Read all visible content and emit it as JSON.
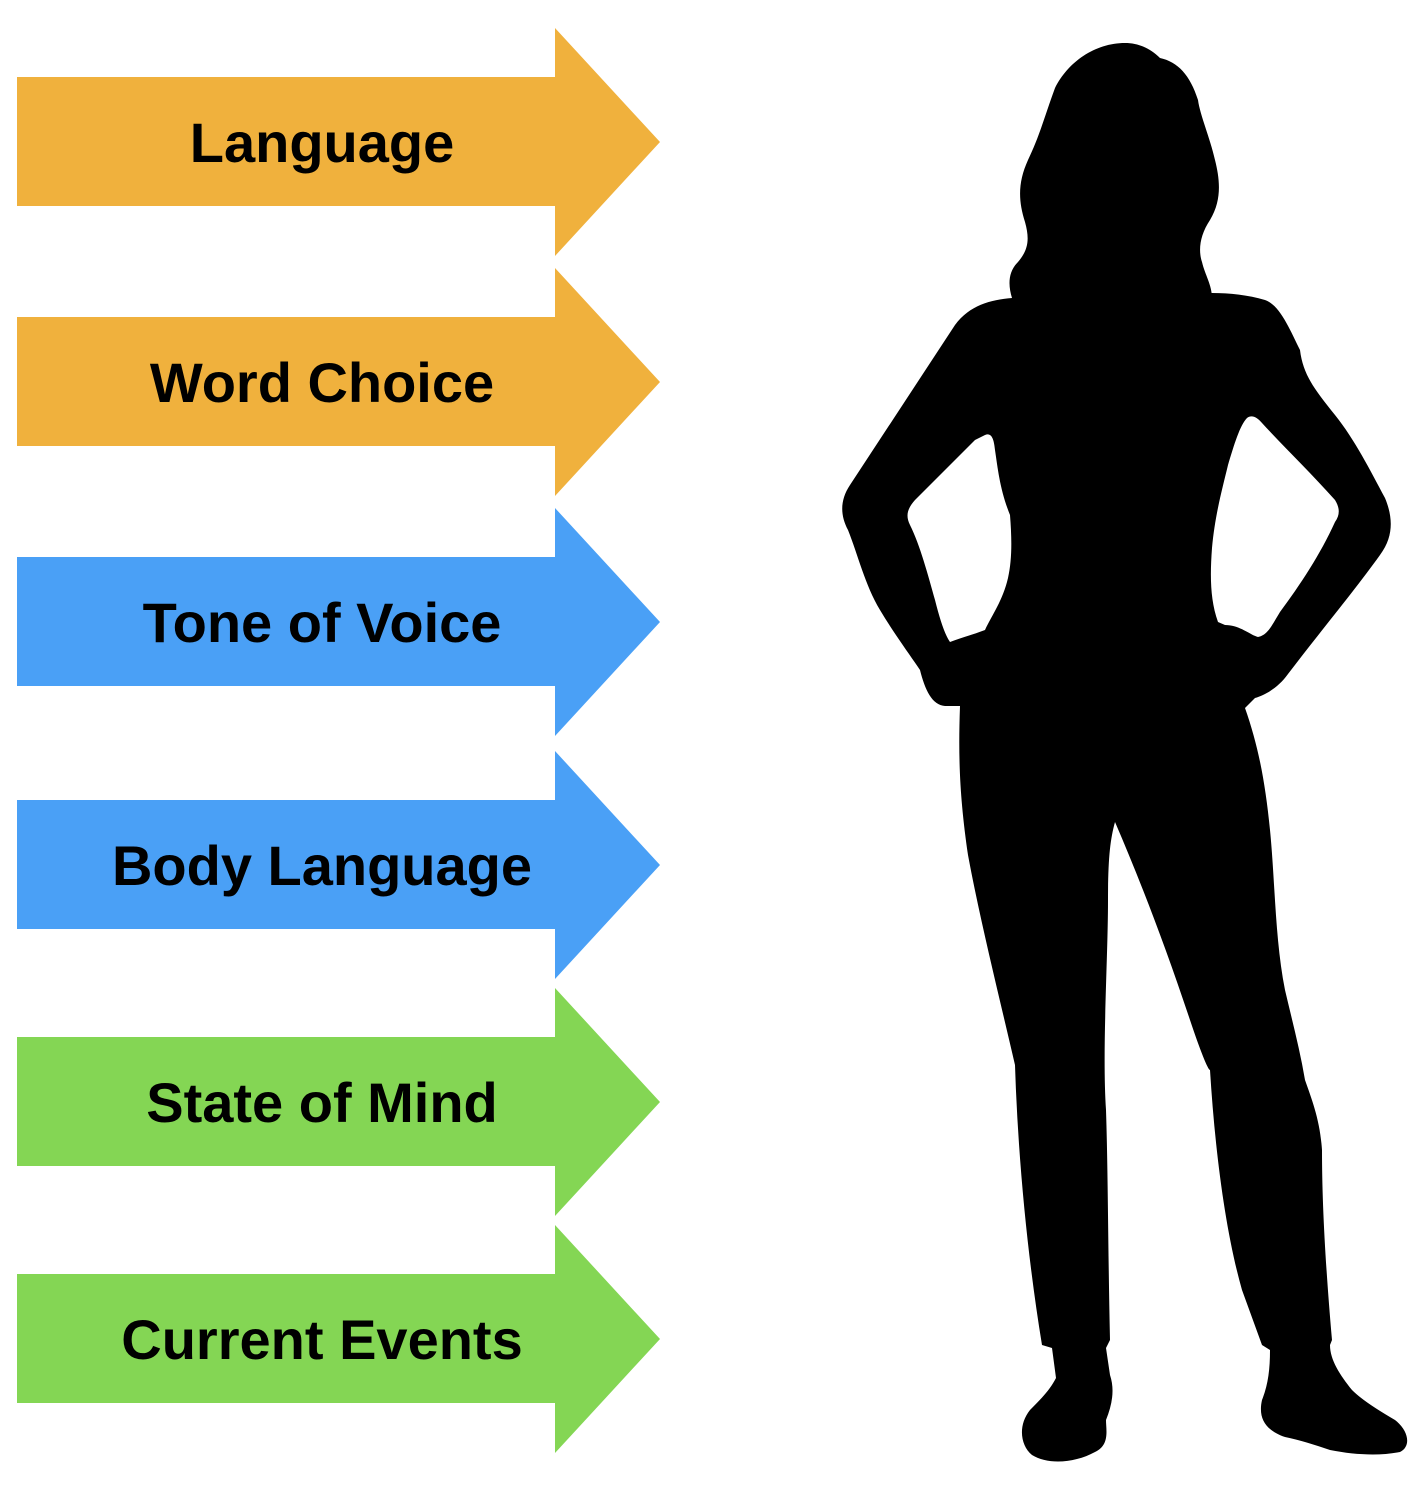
{
  "colors": {
    "background": "#ffffff",
    "orange": "#F0B13D",
    "blue": "#4AA0F6",
    "green": "#84D654",
    "silhouette": "#000000"
  },
  "arrows": [
    {
      "label": "Language",
      "color": "orange"
    },
    {
      "label": "Word Choice",
      "color": "orange"
    },
    {
      "label": "Tone of Voice",
      "color": "blue"
    },
    {
      "label": "Body Language",
      "color": "blue"
    },
    {
      "label": "State of Mind",
      "color": "green"
    },
    {
      "label": "Current Events",
      "color": "green"
    }
  ],
  "figure": {
    "icon": "woman-silhouette-icon"
  }
}
